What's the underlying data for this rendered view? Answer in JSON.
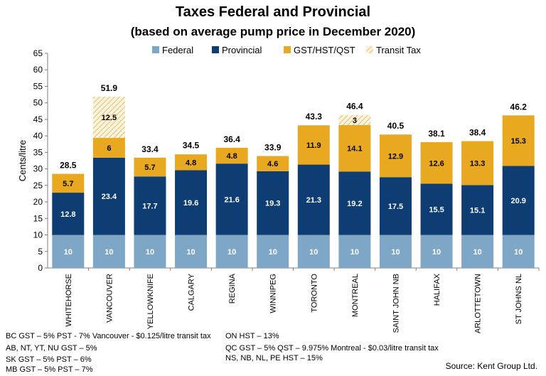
{
  "chart_data": {
    "type": "bar",
    "stacked": true,
    "title": "Taxes Federal and Provincial",
    "subtitle": "(based on average pump price in December 2020)",
    "ylabel": "Cents/litre",
    "xlabel": "",
    "ylim": [
      0,
      65
    ],
    "yticks": [
      0,
      5,
      10,
      15,
      20,
      25,
      30,
      35,
      40,
      45,
      50,
      55,
      60,
      65
    ],
    "grid": false,
    "legend_position": "top",
    "categories": [
      "WHITEHORSE",
      "VANCOUVER",
      "YELLOWKNIFE",
      "CALGARY",
      "REGINA",
      "WINNIPEG",
      "TORONTO",
      "MONTREAL",
      "SAINT JOHN NB",
      "HALIFAX",
      "CHARLOTTETOWN",
      "ST JOHNS NL"
    ],
    "series": [
      {
        "name": "Federal",
        "color": "#7ea6c6",
        "values": [
          10,
          10,
          10,
          10,
          10,
          10,
          10,
          10,
          10,
          10,
          10,
          10
        ]
      },
      {
        "name": "Provincial",
        "color": "#0d3d72",
        "values": [
          12.8,
          23.4,
          17.7,
          19.6,
          21.6,
          19.3,
          21.3,
          19.2,
          17.5,
          15.5,
          15.1,
          20.9
        ]
      },
      {
        "name": "GST/HST/QST",
        "color": "#e8a820",
        "values": [
          5.7,
          6,
          5.7,
          4.8,
          4.8,
          4.6,
          11.9,
          14.1,
          12.9,
          12.6,
          13.3,
          15.3
        ]
      },
      {
        "name": "Transit Tax",
        "color": "#e8c878",
        "pattern": "hatch",
        "values": [
          0,
          12.5,
          0,
          0,
          0,
          0,
          0,
          3,
          0,
          0,
          0,
          0
        ]
      }
    ],
    "totals": [
      28.5,
      51.9,
      33.4,
      34.5,
      36.4,
      33.9,
      43.3,
      46.4,
      40.5,
      38.1,
      38.4,
      46.2
    ]
  },
  "notes": {
    "left": [
      "BC GST – 5% PST - 7% Vancouver - $0.125/litre transit tax",
      "AB, NT, YT, NU GST – 5%",
      "SK GST – 5% PST – 6%",
      "MB GST – 5% PST – 7%"
    ],
    "right": [
      "ON HST – 13%",
      "QC GST – 5% QST – 9.975% Montreal - $0.03/litre transit tax",
      "NS, NB, NL, PE HST – 15%"
    ]
  },
  "source": "Source:  Kent Group Ltd."
}
